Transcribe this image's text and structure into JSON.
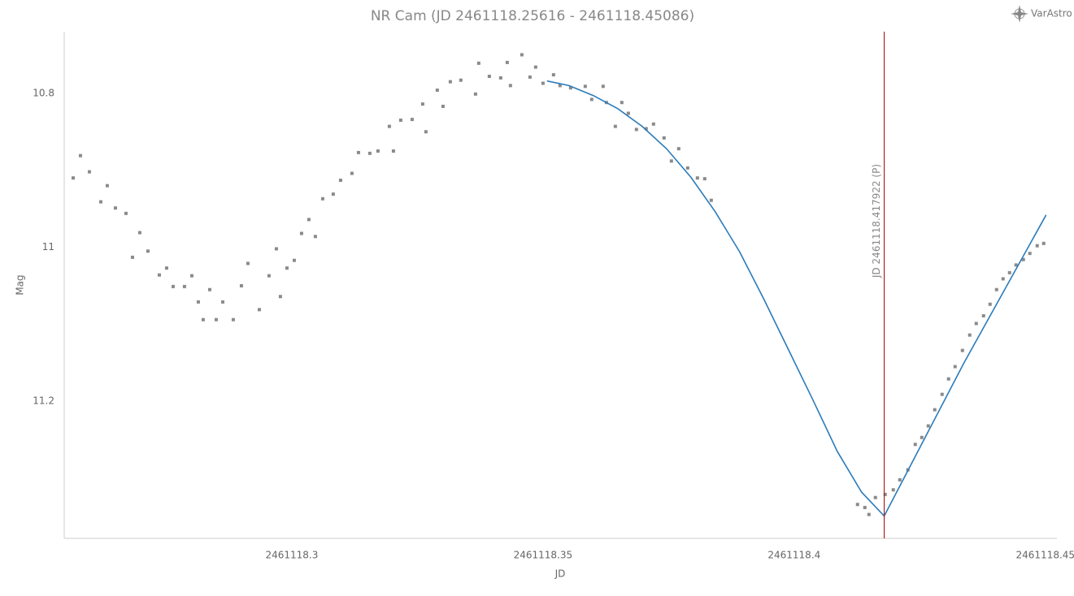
{
  "logo": "VarAstro",
  "chart_data": {
    "type": "scatter",
    "title": "NR Cam (JD 2461118.25616 - 2461118.45086)",
    "xlabel": "JD",
    "ylabel": "Mag",
    "xlim": [
      2461118.2547,
      2461118.4523
    ],
    "ylim": [
      10.72,
      11.378
    ],
    "y_inverted": true,
    "xticks": [
      2461118.3,
      2461118.35,
      2461118.4,
      2461118.45
    ],
    "yticks": [
      10.8,
      11,
      11.2
    ],
    "grid": false,
    "series": [
      {
        "type": "scatter",
        "color": "#8a8a8a",
        "x": [
          2461118.25648,
          2461118.25793,
          2461118.25971,
          2461118.26198,
          2461118.26327,
          2461118.26489,
          2461118.26699,
          2461118.26829,
          2461118.26974,
          2461118.27136,
          2461118.27363,
          2461118.27508,
          2461118.27638,
          2461118.27864,
          2461118.2801,
          2461118.28139,
          2461118.28236,
          2461118.28366,
          2461118.28495,
          2461118.28625,
          2461118.28835,
          2461118.28997,
          2461118.29126,
          2461118.29353,
          2461118.29547,
          2461118.29693,
          2461118.29773,
          2461118.29903,
          2461118.30049,
          2461118.30194,
          2461118.3034,
          2461118.30469,
          2461118.30615,
          2461118.30825,
          2461118.30971,
          2461118.31197,
          2461118.31327,
          2461118.31553,
          2461118.31715,
          2461118.31942,
          2461118.32023,
          2461118.32168,
          2461118.32395,
          2461118.32605,
          2461118.3267,
          2461118.32896,
          2461118.3301,
          2461118.33155,
          2461118.33365,
          2461118.33657,
          2461118.33721,
          2461118.33932,
          2461118.34158,
          2461118.34288,
          2461118.34352,
          2461118.34579,
          2461118.34741,
          2461118.34854,
          2461118.35,
          2461118.3521,
          2461118.35339,
          2461118.3555,
          2461118.35841,
          2461118.3597,
          2461118.36197,
          2461118.36262,
          2461118.3644,
          2461118.36569,
          2461118.36699,
          2461118.3686,
          2461118.37054,
          2461118.372,
          2461118.3741,
          2461118.37556,
          2461118.37702,
          2461118.3788,
          2461118.38074,
          2461118.38219,
          2461118.38349,
          2461118.41261,
          2461118.41407,
          2461118.41488,
          2461118.41617,
          2461118.41811,
          2461118.41973,
          2461118.42103,
          2461118.42264,
          2461118.4241,
          2461118.4254,
          2461118.42669,
          2461118.42798,
          2461118.42944,
          2461118.43073,
          2461118.43203,
          2461118.43349,
          2461118.43494,
          2461118.43624,
          2461118.43769,
          2461118.43899,
          2461118.44028,
          2461118.44158,
          2461118.44287,
          2461118.44416,
          2461118.44562,
          2461118.44691,
          2461118.44837,
          2461118.44967
        ],
        "values": [
          10.91,
          10.881,
          10.902,
          10.941,
          10.92,
          10.949,
          10.956,
          11.013,
          10.981,
          11.005,
          11.036,
          11.027,
          11.051,
          11.051,
          11.037,
          11.071,
          11.094,
          11.055,
          11.094,
          11.071,
          11.094,
          11.05,
          11.021,
          11.081,
          11.037,
          11.002,
          11.064,
          11.027,
          11.017,
          10.982,
          10.964,
          10.986,
          10.937,
          10.931,
          10.913,
          10.904,
          10.877,
          10.878,
          10.875,
          10.843,
          10.875,
          10.835,
          10.834,
          10.814,
          10.85,
          10.796,
          10.817,
          10.785,
          10.783,
          10.801,
          10.761,
          10.778,
          10.78,
          10.76,
          10.79,
          10.75,
          10.779,
          10.766,
          10.787,
          10.776,
          10.79,
          10.793,
          10.791,
          10.808,
          10.791,
          10.812,
          10.843,
          10.812,
          10.826,
          10.847,
          10.846,
          10.84,
          10.858,
          10.888,
          10.872,
          10.897,
          10.91,
          10.911,
          10.939,
          11.334,
          11.338,
          11.347,
          11.325,
          11.321,
          11.315,
          11.302,
          11.289,
          11.256,
          11.247,
          11.232,
          11.211,
          11.191,
          11.171,
          11.155,
          11.134,
          11.114,
          11.099,
          11.089,
          11.074,
          11.055,
          11.041,
          11.033,
          11.023,
          11.016,
          11.008,
          10.998,
          10.995
        ]
      },
      {
        "type": "line",
        "color": "#2b7bba",
        "x": [
          2461118.3508,
          2461118.35517,
          2461118.36003,
          2461118.36488,
          2461118.36974,
          2461118.37459,
          2461118.37944,
          2461118.3843,
          2461118.38915,
          2461118.39401,
          2461118.39886,
          2461118.40371,
          2461118.40857,
          2461118.41342,
          2461118.41792,
          2461118.43381,
          2461118.45015
        ],
        "values": [
          10.784,
          10.79,
          10.803,
          10.82,
          10.843,
          10.872,
          10.909,
          10.954,
          11.006,
          11.068,
          11.133,
          11.198,
          11.265,
          11.318,
          11.349,
          11.15,
          10.958
        ]
      }
    ],
    "annotations": [
      {
        "x": 2461118.417922,
        "label": "JD 2461118.417922 (P)",
        "color": "#a8231f"
      }
    ]
  }
}
